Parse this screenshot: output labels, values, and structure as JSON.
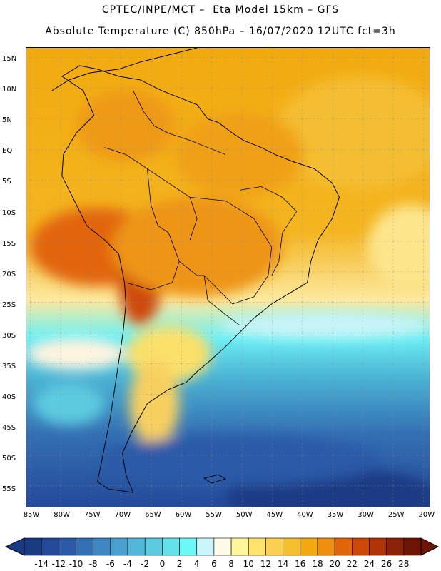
{
  "header": {
    "line1": "CPTEC/INPE/MCT –  Eta Model 15km – GFS",
    "line2": "Absolute Temperature (C) 850hPa – 16/07/2020 12UTC fct=3h"
  },
  "map": {
    "lat_labels": [
      "15N",
      "10N",
      "5N",
      "EQ",
      "5S",
      "10S",
      "15S",
      "20S",
      "25S",
      "30S",
      "35S",
      "40S",
      "45S",
      "50S",
      "55S"
    ],
    "lon_labels": [
      "85W",
      "80W",
      "75W",
      "70W",
      "65W",
      "60W",
      "55W",
      "50W",
      "45W",
      "40W",
      "35W",
      "30W",
      "25W",
      "20W"
    ]
  },
  "colorbar": {
    "labels": [
      "-14",
      "-12",
      "-10",
      "-8",
      "-6",
      "-4",
      "-2",
      "0",
      "2",
      "4",
      "6",
      "8",
      "10",
      "12",
      "14",
      "16",
      "18",
      "20",
      "22",
      "24",
      "26",
      "28"
    ],
    "colors": [
      "#1b3a84",
      "#24499a",
      "#2c5aa8",
      "#3470b4",
      "#3f87c2",
      "#4aa0ce",
      "#52b7d8",
      "#5ccbe0",
      "#63e2ea",
      "#6cf8f8",
      "#c8f4fa",
      "#fffbe8",
      "#fff59a",
      "#fee36e",
      "#fcd150",
      "#f6bf2e",
      "#f2aa10",
      "#ee8f10",
      "#e2650a",
      "#cd4808",
      "#b03406",
      "#8c2208",
      "#6e1404"
    ]
  }
}
